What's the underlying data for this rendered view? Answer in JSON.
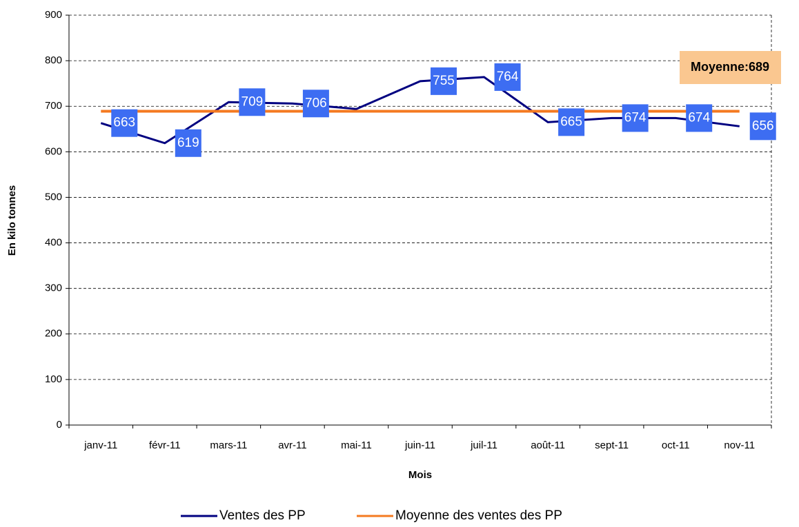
{
  "chart_data": {
    "type": "line",
    "y_label": "En kilo tonnes",
    "x_label": "Mois",
    "categories": [
      "janv-11",
      "févr-11",
      "mars-11",
      "avr-11",
      "mai-11",
      "juin-11",
      "juil-11",
      "août-11",
      "sept-11",
      "oct-11",
      "nov-11"
    ],
    "series": [
      {
        "name": "Ventes des PP",
        "color": "#000080",
        "values": [
          663,
          619,
          709,
          706,
          694,
          755,
          764,
          665,
          674,
          674,
          656
        ],
        "value_labels": [
          "663",
          "619",
          "709",
          "706",
          null,
          "755",
          "764",
          "665",
          "674",
          "674",
          "656"
        ]
      },
      {
        "name": "Moyenne des ventes des PP",
        "color": "#f47a20",
        "values": [
          689,
          689,
          689,
          689,
          689,
          689,
          689,
          689,
          689,
          689,
          689
        ]
      }
    ],
    "annotation": "Moyenne:689",
    "ylim": [
      0,
      900
    ],
    "yticks": [
      0,
      100,
      200,
      300,
      400,
      500,
      600,
      700,
      800,
      900
    ],
    "grid": true
  }
}
